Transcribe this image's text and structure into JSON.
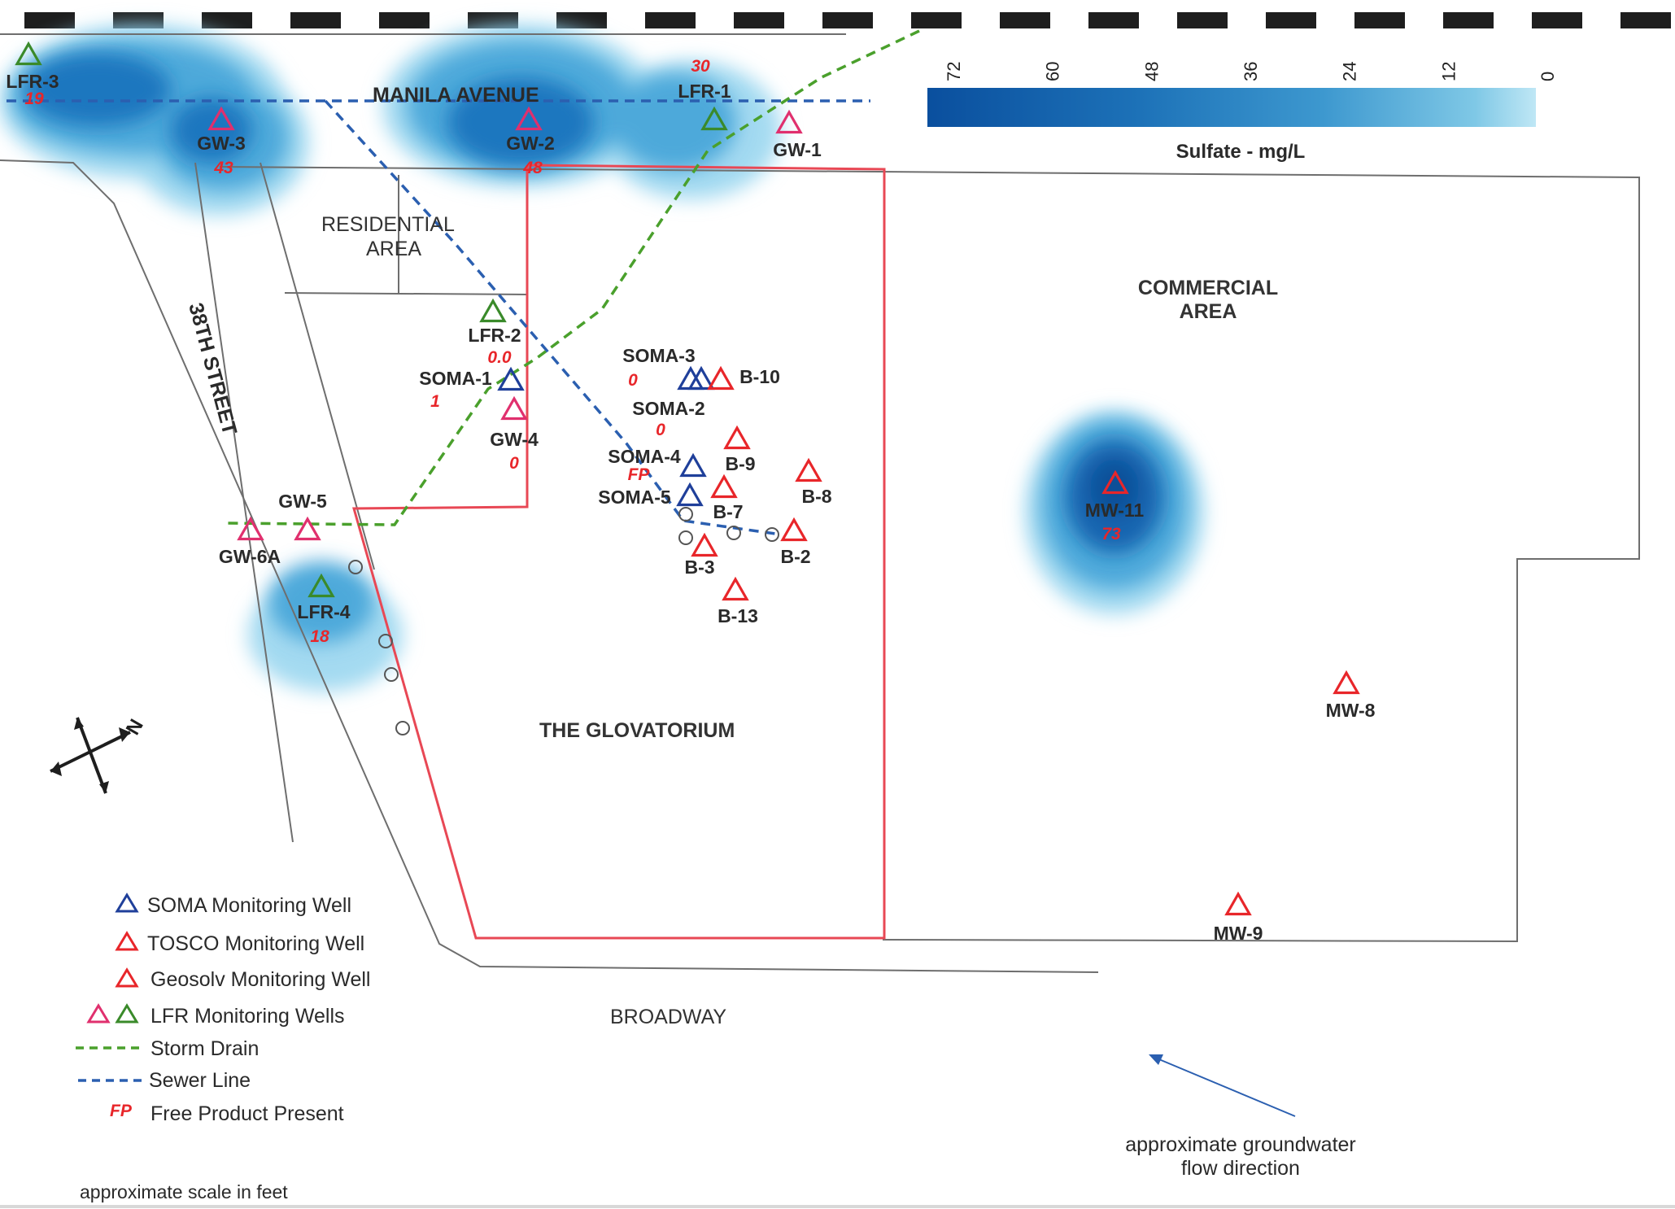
{
  "legend_scale": {
    "ticks": [
      "72",
      "60",
      "48",
      "36",
      "24",
      "12",
      "0"
    ],
    "title": "Sulfate - mg/L",
    "colors": [
      "#0a4f9e",
      "#1769b3",
      "#2a86c4",
      "#47a3d4",
      "#6cbfe2",
      "#9fd7ee",
      "#c8ecf7"
    ]
  },
  "streets": {
    "manila": "MANILA AVENUE",
    "street38": "38TH STREET",
    "broadway": "BROADWAY"
  },
  "areas": {
    "residential_1": "RESIDENTIAL",
    "residential_2": "AREA",
    "commercial_1": "COMMERCIAL",
    "commercial_2": "AREA",
    "glovatorium": "THE GLOVATORIUM"
  },
  "compass": {
    "label": "N"
  },
  "wells": [
    {
      "id": "LFR-3",
      "value": "19",
      "type": "lfr-green"
    },
    {
      "id": "GW-3",
      "value": "43",
      "type": "lfr-pink"
    },
    {
      "id": "GW-2",
      "value": "48",
      "type": "lfr-pink"
    },
    {
      "id": "LFR-1",
      "value": "30",
      "type": "lfr-green"
    },
    {
      "id": "GW-1",
      "value": "",
      "type": "lfr-pink"
    },
    {
      "id": "LFR-2",
      "value": "0.0",
      "type": "lfr-green"
    },
    {
      "id": "SOMA-1",
      "value": "1",
      "type": "soma"
    },
    {
      "id": "GW-4",
      "value": "0",
      "type": "lfr-pink"
    },
    {
      "id": "SOMA-3",
      "value": "0",
      "type": "soma"
    },
    {
      "id": "SOMA-2",
      "value": "0",
      "type": "soma"
    },
    {
      "id": "B-10",
      "value": "",
      "type": "geosolv"
    },
    {
      "id": "SOMA-4",
      "value": "FP",
      "type": "soma"
    },
    {
      "id": "SOMA-5",
      "value": "",
      "type": "soma"
    },
    {
      "id": "B-9",
      "value": "",
      "type": "geosolv"
    },
    {
      "id": "B-8",
      "value": "",
      "type": "geosolv"
    },
    {
      "id": "B-7",
      "value": "",
      "type": "geosolv"
    },
    {
      "id": "B-3",
      "value": "",
      "type": "geosolv"
    },
    {
      "id": "B-2",
      "value": "",
      "type": "geosolv"
    },
    {
      "id": "B-13",
      "value": "",
      "type": "geosolv"
    },
    {
      "id": "GW-5",
      "value": "",
      "type": "lfr-pink"
    },
    {
      "id": "GW-6A",
      "value": "",
      "type": "lfr-pink"
    },
    {
      "id": "LFR-4",
      "value": "18",
      "type": "lfr-green"
    },
    {
      "id": "MW-11",
      "value": "73",
      "type": "tosco"
    },
    {
      "id": "MW-8",
      "value": "",
      "type": "tosco"
    },
    {
      "id": "MW-9",
      "value": "",
      "type": "tosco"
    }
  ],
  "legend": {
    "soma": "SOMA Monitoring Well",
    "tosco": "TOSCO Monitoring Well",
    "geosolv": "Geosolv Monitoring Well",
    "lfr": "LFR Monitoring Wells",
    "storm": "Storm Drain",
    "sewer": "Sewer Line",
    "fp_symbol": "FP",
    "fp": "Free Product Present"
  },
  "flow": {
    "line1": "approximate groundwater",
    "line2": "flow direction"
  },
  "scale": {
    "label": "approximate scale in feet"
  },
  "colors": {
    "soma": "#1f3f9a",
    "tosco": "#e8262a",
    "lfr_pink": "#e0306e",
    "lfr_green": "#3a8a2a",
    "storm": "#4aa02c",
    "sewer": "#2b5fb0",
    "boundary": "#e84855"
  }
}
